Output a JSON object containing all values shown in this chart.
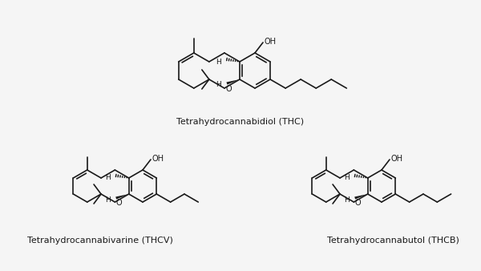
{
  "background_color": "#f5f5f5",
  "line_color": "#1a1a1a",
  "title_thc": "Tetrahydrocannabidiol (THC)",
  "title_thcv": "Tetrahydrocannabivarine (THCV)",
  "title_thcb": "Tetrahydrocannabutol (THCB)",
  "title_fontsize": 8.0,
  "label_fontsize": 6.8
}
